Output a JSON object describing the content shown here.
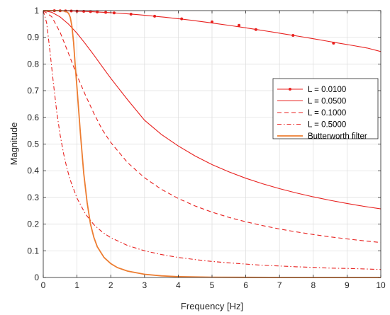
{
  "chart_data": {
    "type": "line",
    "title": "",
    "xlabel": "Frequency [Hz]",
    "ylabel": "Magnitude",
    "xlim": [
      0,
      10
    ],
    "ylim": [
      0,
      1
    ],
    "xticks": [
      0,
      1,
      2,
      3,
      4,
      5,
      6,
      7,
      8,
      9,
      10
    ],
    "yticks": [
      0,
      0.1,
      0.2,
      0.3,
      0.4,
      0.5,
      0.6,
      0.7,
      0.8,
      0.9,
      1
    ],
    "grid": true,
    "legend": "right",
    "series": [
      {
        "name": "L = 0.0100",
        "color": "#e8211f",
        "style": "solid-dot",
        "x": [
          0,
          0.2,
          0.4,
          0.6,
          0.8,
          1.0,
          1.2,
          1.4,
          1.6,
          1.8,
          2.0,
          2.2,
          2.4,
          2.6,
          2.8,
          3.0,
          3.2,
          3.4,
          3.6,
          3.8,
          4.0,
          4.4,
          4.8,
          5.2,
          5.6,
          6.0,
          6.4,
          6.8,
          7.2,
          7.6,
          8.0,
          8.4,
          8.8,
          9.2,
          9.6,
          10.0
        ],
        "y": [
          1.0,
          0.9999,
          0.9997,
          0.9993,
          0.9987,
          0.998,
          0.9972,
          0.9962,
          0.995,
          0.9937,
          0.9922,
          0.9906,
          0.9888,
          0.9869,
          0.9848,
          0.9826,
          0.9803,
          0.9778,
          0.9752,
          0.9725,
          0.9697,
          0.9636,
          0.9571,
          0.9502,
          0.943,
          0.9355,
          0.9277,
          0.9197,
          0.9115,
          0.9031,
          0.8946,
          0.886,
          0.8773,
          0.8686,
          0.8598,
          0.8467
        ],
        "marker_x": [
          0.33,
          0.5,
          0.66,
          0.83,
          1.0,
          1.2,
          1.4,
          1.6,
          1.85,
          2.1,
          2.6,
          3.3,
          4.1,
          5.0,
          5.8,
          6.3,
          7.4,
          8.6
        ],
        "marker_y": [
          0.9998,
          0.9995,
          0.9991,
          0.9986,
          0.998,
          0.9972,
          0.9962,
          0.995,
          0.9934,
          0.9915,
          0.9869,
          0.979,
          0.969,
          0.958,
          0.945,
          0.929,
          0.907,
          0.878
        ]
      },
      {
        "name": "L = 0.0500",
        "color": "#e8211f",
        "style": "solid",
        "x": [
          0,
          0.25,
          0.5,
          0.75,
          1.0,
          1.25,
          1.5,
          1.75,
          2.0,
          2.5,
          3.0,
          3.5,
          4.0,
          4.5,
          5.0,
          5.5,
          6.0,
          6.5,
          7.0,
          7.5,
          8.0,
          8.5,
          9.0,
          9.5,
          10.0
        ],
        "y": [
          1.0,
          0.9939,
          0.9765,
          0.9493,
          0.9151,
          0.8756,
          0.8333,
          0.7896,
          0.7465,
          0.6658,
          0.5893,
          0.5362,
          0.4929,
          0.4552,
          0.4231,
          0.3957,
          0.3719,
          0.3511,
          0.3328,
          0.3166,
          0.3021,
          0.2891,
          0.2774,
          0.2667,
          0.257
        ]
      },
      {
        "name": "L = 0.1000",
        "color": "#e8211f",
        "style": "dashed",
        "x": [
          0,
          0.25,
          0.5,
          0.75,
          1.0,
          1.25,
          1.5,
          1.75,
          2.0,
          2.5,
          3.0,
          3.5,
          4.0,
          4.5,
          5.0,
          5.5,
          6.0,
          6.5,
          7.0,
          7.5,
          8.0,
          8.5,
          9.0,
          9.5,
          10.0
        ],
        "y": [
          1.0,
          0.9775,
          0.9185,
          0.8389,
          0.7568,
          0.6831,
          0.6149,
          0.5534,
          0.5062,
          0.4303,
          0.3738,
          0.3303,
          0.2959,
          0.2679,
          0.2448,
          0.2253,
          0.2087,
          0.1943,
          0.1818,
          0.1708,
          0.161,
          0.1523,
          0.1445,
          0.1375,
          0.1311
        ]
      },
      {
        "name": "L = 0.5000",
        "color": "#e8211f",
        "style": "dashdot",
        "x": [
          0,
          0.1,
          0.2,
          0.3,
          0.4,
          0.5,
          0.6,
          0.7,
          0.8,
          1.0,
          1.25,
          1.5,
          1.75,
          2.0,
          2.5,
          3.0,
          3.5,
          4.0,
          4.5,
          5.0,
          5.5,
          6.0,
          6.5,
          7.0,
          7.5,
          8.0,
          8.5,
          9.0,
          9.5,
          10.0
        ],
        "y": [
          1.0,
          0.954,
          0.847,
          0.728,
          0.621,
          0.534,
          0.465,
          0.41,
          0.365,
          0.297,
          0.238,
          0.198,
          0.17,
          0.149,
          0.12,
          0.1,
          0.086,
          0.075,
          0.067,
          0.06,
          0.055,
          0.05,
          0.046,
          0.043,
          0.04,
          0.038,
          0.035,
          0.034,
          0.032,
          0.03
        ]
      },
      {
        "name": "Butterworth filter",
        "color": "#ed7d31",
        "style": "solid",
        "x": [
          0,
          0.2,
          0.4,
          0.6,
          0.7,
          0.75,
          0.8,
          0.85,
          0.9,
          0.95,
          1.0,
          1.1,
          1.2,
          1.3,
          1.4,
          1.5,
          1.6,
          1.8,
          2.0,
          2.2,
          2.5,
          3.0,
          3.5,
          4.0,
          5.0,
          6.0,
          8.0,
          10.0
        ],
        "y": [
          1.0,
          1.0,
          1.0,
          0.999,
          0.995,
          0.99,
          0.975,
          0.94,
          0.88,
          0.79,
          0.71,
          0.54,
          0.39,
          0.28,
          0.2,
          0.15,
          0.115,
          0.075,
          0.052,
          0.037,
          0.024,
          0.012,
          0.006,
          0.003,
          0.001,
          0.0004,
          0.0001,
          0.0
        ]
      }
    ]
  }
}
